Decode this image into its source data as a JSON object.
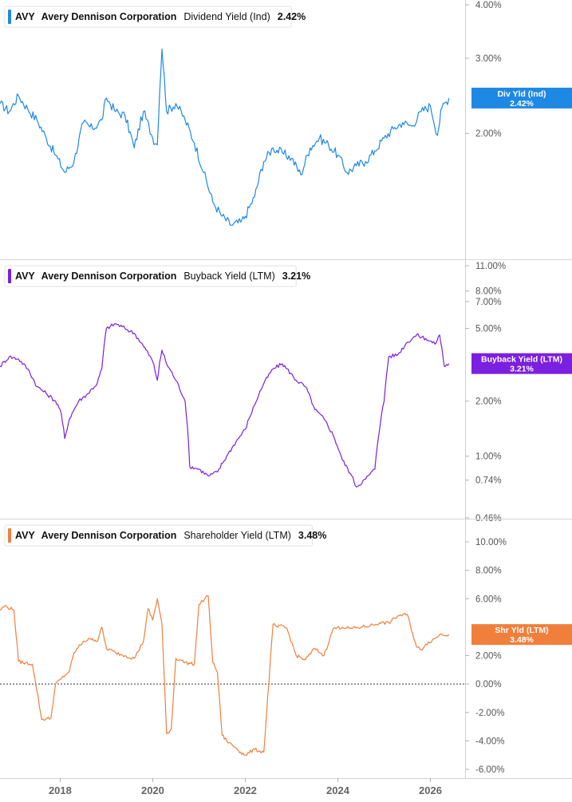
{
  "chart_data": [
    {
      "type": "line",
      "ticker": "AVY",
      "company": "Avery Dennison Corporation",
      "metric": "Dividend Yield (Ind)",
      "current_value": "2.42%",
      "badge_lines": [
        "Div Yld (Ind)",
        "2.42%"
      ],
      "color": "#1e88e5",
      "y_scale": "log",
      "ylim": [
        1.13,
        4.0
      ],
      "y_ticks": [
        4.0,
        3.0,
        2.0
      ],
      "y_tick_labels": [
        "4.00%",
        "3.00%",
        "2.00%"
      ],
      "x": [
        2016.7,
        2016.9,
        2017.1,
        2017.3,
        2017.5,
        2017.7,
        2017.9,
        2018.1,
        2018.3,
        2018.5,
        2018.7,
        2018.9,
        2019.0,
        2019.2,
        2019.4,
        2019.6,
        2019.8,
        2020.0,
        2020.1,
        2020.2,
        2020.3,
        2020.5,
        2020.7,
        2020.9,
        2021.1,
        2021.3,
        2021.5,
        2021.7,
        2021.9,
        2022.0,
        2022.2,
        2022.4,
        2022.6,
        2022.8,
        2023.0,
        2023.2,
        2023.4,
        2023.6,
        2023.8,
        2024.0,
        2024.2,
        2024.4,
        2024.6,
        2024.8,
        2025.0,
        2025.2,
        2025.4,
        2025.6,
        2025.8,
        2026.0,
        2026.15,
        2026.25,
        2026.4
      ],
      "series": [
        {
          "values": [
            2.35,
            2.25,
            2.45,
            2.28,
            2.15,
            1.95,
            1.78,
            1.62,
            1.72,
            2.12,
            2.05,
            2.15,
            2.42,
            2.25,
            2.2,
            1.85,
            2.25,
            1.95,
            1.88,
            3.15,
            2.25,
            2.35,
            2.15,
            1.9,
            1.62,
            1.38,
            1.28,
            1.22,
            1.24,
            1.28,
            1.42,
            1.72,
            1.85,
            1.8,
            1.75,
            1.6,
            1.85,
            1.95,
            1.88,
            1.78,
            1.62,
            1.68,
            1.72,
            1.82,
            1.95,
            2.05,
            2.12,
            2.08,
            2.25,
            2.32,
            1.98,
            2.3,
            2.42
          ]
        }
      ]
    },
    {
      "type": "line",
      "ticker": "AVY",
      "company": "Avery Dennison Corporation",
      "metric": "Buyback Yield (LTM)",
      "current_value": "3.21%",
      "badge_lines": [
        "Buyback Yield (LTM)",
        "3.21%"
      ],
      "color": "#7b1fe0",
      "y_scale": "log",
      "ylim": [
        0.46,
        11.0
      ],
      "y_ticks": [
        11.0,
        8.0,
        7.0,
        5.0,
        2.0,
        1.0,
        0.74,
        0.46
      ],
      "y_tick_labels": [
        "11.00%",
        "8.00%",
        "7.00%",
        "5.00%",
        "2.00%",
        "1.00%",
        "0.74%",
        "0.46%"
      ],
      "x": [
        2016.7,
        2016.9,
        2017.1,
        2017.3,
        2017.5,
        2017.7,
        2017.9,
        2018.0,
        2018.1,
        2018.2,
        2018.4,
        2018.6,
        2018.8,
        2018.9,
        2019.0,
        2019.2,
        2019.4,
        2019.6,
        2019.8,
        2020.0,
        2020.1,
        2020.2,
        2020.3,
        2020.5,
        2020.7,
        2020.8,
        2021.0,
        2021.2,
        2021.4,
        2021.6,
        2021.8,
        2022.0,
        2022.2,
        2022.4,
        2022.6,
        2022.8,
        2022.9,
        2023.1,
        2023.3,
        2023.5,
        2023.7,
        2023.9,
        2024.1,
        2024.3,
        2024.4,
        2024.6,
        2024.8,
        2025.0,
        2025.1,
        2025.3,
        2025.5,
        2025.7,
        2025.9,
        2026.1,
        2026.2,
        2026.3,
        2026.4
      ],
      "series": [
        {
          "values": [
            3.1,
            3.5,
            3.4,
            3.0,
            2.4,
            2.2,
            2.0,
            1.8,
            1.25,
            1.6,
            2.0,
            2.2,
            2.5,
            3.0,
            5.0,
            5.3,
            5.0,
            4.7,
            4.0,
            3.3,
            2.6,
            3.8,
            3.2,
            2.6,
            2.0,
            0.88,
            0.85,
            0.78,
            0.82,
            1.0,
            1.2,
            1.4,
            1.9,
            2.5,
            3.0,
            3.2,
            3.0,
            2.6,
            2.4,
            1.8,
            1.6,
            1.3,
            0.95,
            0.78,
            0.68,
            0.75,
            0.85,
            2.0,
            3.5,
            3.6,
            4.2,
            4.6,
            4.4,
            4.1,
            4.6,
            3.1,
            3.21
          ]
        }
      ]
    },
    {
      "type": "line",
      "ticker": "AVY",
      "company": "Avery Dennison Corporation",
      "metric": "Shareholder Yield (LTM)",
      "current_value": "3.48%",
      "badge_lines": [
        "Shr Yld (LTM)",
        "3.48%"
      ],
      "color": "#f07f3c",
      "y_scale": "linear",
      "ylim": [
        -6.0,
        10.0
      ],
      "y_ticks": [
        10.0,
        8.0,
        6.0,
        2.0,
        0.0,
        -2.0,
        -4.0,
        -6.0
      ],
      "y_tick_labels": [
        "10.00%",
        "8.00%",
        "6.00%",
        "2.00%",
        "0.00%",
        "-2.00%",
        "-4.00%",
        "-6.00%"
      ],
      "zero_line": 0.0,
      "x": [
        2016.7,
        2016.8,
        2017.0,
        2017.1,
        2017.2,
        2017.4,
        2017.5,
        2017.6,
        2017.8,
        2017.9,
        2018.0,
        2018.2,
        2018.3,
        2018.5,
        2018.7,
        2018.8,
        2018.9,
        2019.0,
        2019.2,
        2019.4,
        2019.6,
        2019.8,
        2019.9,
        2020.0,
        2020.1,
        2020.2,
        2020.3,
        2020.4,
        2020.5,
        2020.6,
        2020.7,
        2020.9,
        2021.0,
        2021.2,
        2021.3,
        2021.4,
        2021.5,
        2021.6,
        2021.8,
        2021.9,
        2022.0,
        2022.2,
        2022.4,
        2022.6,
        2022.7,
        2022.8,
        2022.9,
        2023.1,
        2023.3,
        2023.5,
        2023.7,
        2023.9,
        2024.1,
        2024.3,
        2024.5,
        2024.7,
        2024.9,
        2025.1,
        2025.3,
        2025.5,
        2025.7,
        2025.8,
        2025.9,
        2026.1,
        2026.2,
        2026.4
      ],
      "series": [
        {
          "values": [
            5.2,
            5.5,
            5.2,
            1.6,
            1.5,
            1.4,
            -0.5,
            -2.5,
            -2.4,
            0.0,
            0.3,
            0.9,
            2.2,
            3.0,
            3.2,
            3.0,
            4.0,
            2.5,
            2.2,
            2.0,
            1.8,
            3.0,
            5.3,
            4.5,
            6.0,
            4.2,
            -3.5,
            -3.2,
            1.8,
            1.7,
            1.5,
            1.4,
            5.6,
            6.2,
            1.5,
            0.8,
            -3.6,
            -4.0,
            -4.5,
            -4.8,
            -5.0,
            -4.6,
            -4.8,
            4.2,
            4.0,
            4.1,
            3.9,
            2.0,
            1.7,
            2.5,
            2.0,
            3.9,
            4.0,
            3.9,
            4.0,
            4.1,
            4.3,
            4.3,
            4.8,
            4.9,
            2.6,
            2.4,
            2.8,
            3.2,
            3.48,
            3.48
          ]
        }
      ]
    }
  ],
  "x_axis": {
    "ticks": [
      2018,
      2020,
      2022,
      2024,
      2026
    ],
    "tick_labels": [
      "2018",
      "2020",
      "2022",
      "2024",
      "2026"
    ],
    "xlim": [
      2016.7,
      2026.75
    ]
  }
}
